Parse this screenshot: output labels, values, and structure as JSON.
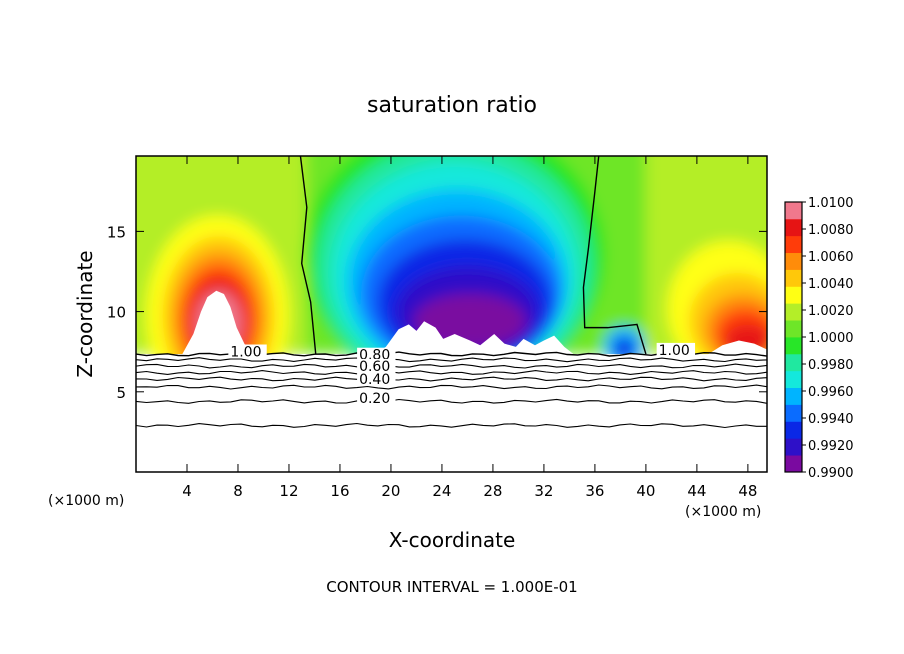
{
  "chart_data": {
    "type": "heatmap",
    "title": "saturation ratio",
    "xlabel": "X-coordinate",
    "ylabel": "Z-coordinate",
    "x_unit_left": "(×1000 m)",
    "x_unit_right": "(×1000 m)",
    "footer": "CONTOUR INTERVAL = 1.000E-01",
    "xlim": [
      0,
      49.5
    ],
    "ylim": [
      0,
      19.7
    ],
    "x_ticks": [
      4,
      8,
      12,
      16,
      20,
      24,
      28,
      32,
      36,
      40,
      44,
      48
    ],
    "x_tick_labels": [
      "4",
      "8",
      "12",
      "16",
      "20",
      "24",
      "28",
      "32",
      "36",
      "40",
      "44",
      "48"
    ],
    "y_ticks": [
      5,
      10,
      15
    ],
    "y_tick_labels": [
      "5",
      "10",
      "15"
    ],
    "colorbar": {
      "min": 0.99,
      "max": 1.01,
      "tick_values": [
        0.99,
        0.992,
        0.994,
        0.996,
        0.998,
        1.0,
        1.002,
        1.004,
        1.006,
        1.008,
        1.01
      ],
      "tick_labels": [
        "0.9900",
        "0.9920",
        "0.9940",
        "0.9960",
        "0.9980",
        "1.0000",
        "1.0020",
        "1.0040",
        "1.0060",
        "1.0080",
        "1.0100"
      ],
      "colors": [
        "#7a0aa0",
        "#2e10c8",
        "#0a28e6",
        "#0a6cff",
        "#00b4ff",
        "#14e8dc",
        "#20e8a0",
        "#28e628",
        "#6ee628",
        "#b4ee28",
        "#ffff14",
        "#ffc80a",
        "#ff8c0a",
        "#ff3c0a",
        "#e61414",
        "#f0788c"
      ]
    },
    "contour_labels": [
      {
        "text": "1.00",
        "x": 7.4,
        "z": 7.2
      },
      {
        "text": "0.80",
        "x": 17.5,
        "z": 7.0
      },
      {
        "text": "0.60",
        "x": 17.5,
        "z": 6.3
      },
      {
        "text": "0.40",
        "x": 17.5,
        "z": 5.5
      },
      {
        "text": "0.20",
        "x": 17.5,
        "z": 4.3
      },
      {
        "text": "1.00",
        "x": 41.0,
        "z": 7.3
      }
    ],
    "contour_lines_z": [
      7.35,
      7.0,
      6.6,
      6.2,
      5.8,
      5.3,
      4.4,
      2.9
    ],
    "boundary_line_x": {
      "left": [
        12.9,
        13.4,
        13.0,
        13.7,
        14.1
      ],
      "right": [
        36.3,
        36.0,
        35.5,
        35.1,
        35.2,
        37.0,
        39.3,
        40.0
      ]
    },
    "saturated_region_top": 7.35
  }
}
